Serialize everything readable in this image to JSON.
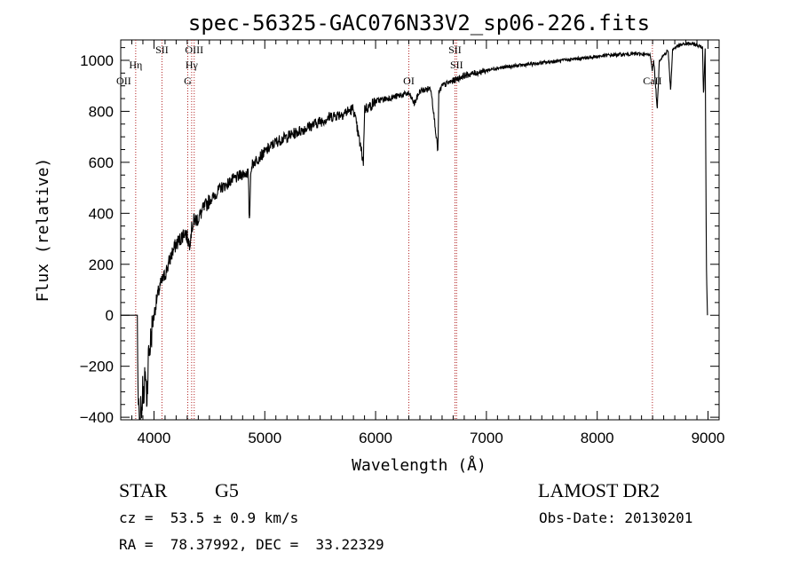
{
  "chart_data": {
    "type": "line",
    "title": "spec-56325-GAC076N33V2_sp06-226.fits",
    "xlabel": "Wavelength (Å)",
    "ylabel": "Flux (relative)",
    "xlim": [
      3700,
      9100
    ],
    "ylim": [
      -410,
      1080
    ],
    "x_ticks": [
      4000,
      5000,
      6000,
      7000,
      8000,
      9000
    ],
    "y_ticks": [
      -400,
      -200,
      0,
      200,
      400,
      600,
      800,
      1000
    ],
    "grid": false,
    "series": [
      {
        "x": [
          3700,
          3850,
          3855,
          3870,
          3880,
          3890,
          3900,
          3910,
          3920,
          3935,
          3950,
          3965,
          3980,
          4000,
          4020,
          4040,
          4060,
          4080,
          4100,
          4130,
          4160,
          4200,
          4240,
          4280,
          4320,
          4340,
          4360,
          4400,
          4450,
          4500,
          4550,
          4600,
          4650,
          4700,
          4750,
          4800,
          4850,
          4861,
          4875,
          4900,
          4950,
          5000,
          5100,
          5200,
          5300,
          5400,
          5500,
          5600,
          5700,
          5800,
          5890,
          5900,
          5950,
          6000,
          6100,
          6200,
          6300,
          6350,
          6400,
          6500,
          6563,
          6570,
          6600,
          6700,
          6800,
          6900,
          7000,
          7100,
          7200,
          7300,
          7400,
          7500,
          7600,
          7700,
          7800,
          7900,
          8000,
          8100,
          8200,
          8300,
          8400,
          8480,
          8498,
          8510,
          8542,
          8560,
          8600,
          8640,
          8662,
          8680,
          8700,
          8750,
          8800,
          8850,
          8900,
          8950,
          8960,
          8975,
          8985,
          8995
        ],
        "y": [
          0,
          0,
          -300,
          -420,
          -330,
          -380,
          -250,
          -360,
          -200,
          -330,
          -160,
          -120,
          -60,
          0,
          50,
          90,
          120,
          140,
          160,
          200,
          240,
          280,
          300,
          330,
          280,
          340,
          370,
          380,
          420,
          450,
          470,
          500,
          510,
          530,
          540,
          555,
          560,
          360,
          580,
          600,
          620,
          640,
          680,
          700,
          720,
          740,
          760,
          780,
          790,
          810,
          600,
          810,
          820,
          840,
          850,
          860,
          870,
          830,
          880,
          890,
          640,
          870,
          900,
          920,
          940,
          950,
          960,
          970,
          975,
          980,
          985,
          990,
          995,
          1000,
          1005,
          1010,
          1015,
          1020,
          1022,
          1025,
          1025,
          1020,
          960,
          1000,
          810,
          1000,
          1020,
          1040,
          880,
          1040,
          1050,
          1060,
          1065,
          1065,
          1060,
          1050,
          860,
          1060,
          200,
          0
        ]
      }
    ],
    "annotations": [
      {
        "label": "Hη",
        "x": 3835,
        "row": 1
      },
      {
        "label": "OII",
        "x": 3727,
        "row": 2
      },
      {
        "label": "SII",
        "x": 4072,
        "row": 0
      },
      {
        "label": "OIII",
        "x": 4363,
        "row": 0
      },
      {
        "label": "Hγ",
        "x": 4340,
        "row": 1
      },
      {
        "label": "G",
        "x": 4305,
        "row": 2
      },
      {
        "label": "OI",
        "x": 6300,
        "row": 2
      },
      {
        "label": "SII",
        "x": 6716,
        "row": 0
      },
      {
        "label": "SII",
        "x": 6731,
        "row": 1
      },
      {
        "label": "CaII",
        "x": 8498,
        "row": 2
      }
    ],
    "marker_lines": [
      3835,
      4072,
      4305,
      4340,
      4363,
      6300,
      6716,
      6731,
      8498
    ],
    "colors": {
      "spectrum": "#000000",
      "marker_lines": "#b22222"
    }
  },
  "info": {
    "object_class": "STAR",
    "subclass": "G5",
    "survey": "LAMOST DR2",
    "velocity": "cz =  53.5 ± 0.9 km/s",
    "obs_date": "Obs-Date: 20130201",
    "coords": "RA =  78.37992, DEC =  33.22329"
  }
}
